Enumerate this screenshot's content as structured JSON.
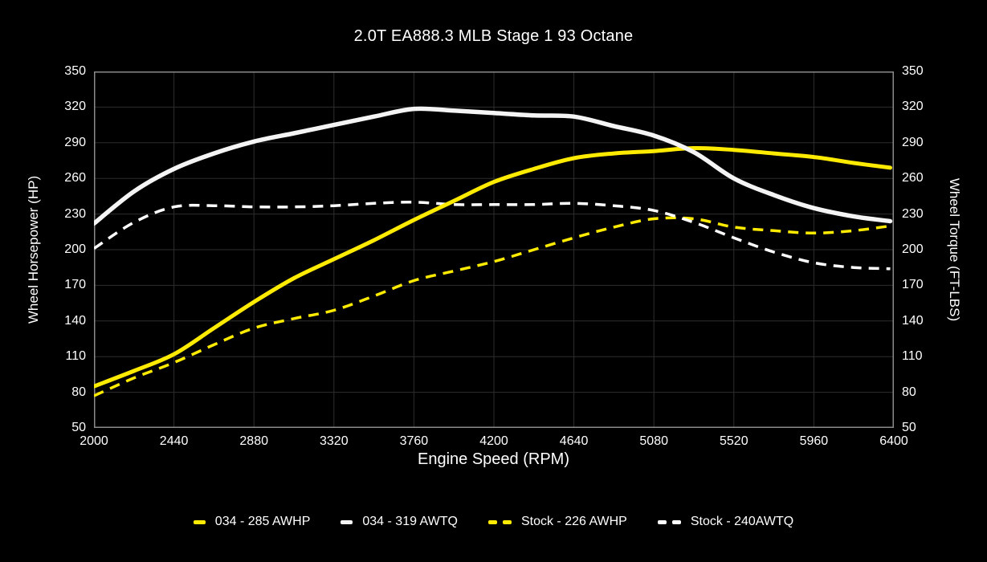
{
  "colors": {
    "background": "#000000",
    "text": "#ffffff",
    "grid": "#2e2e2e",
    "plot_border": "#8a8a8a",
    "accent_yellow": "#ffeb00",
    "accent_white": "#f4f4f4"
  },
  "chart_data": {
    "type": "line",
    "title": "2.0T EA888.3 MLB Stage 1 93 Octane",
    "xlabel": "Engine Speed (RPM)",
    "ylabel_left": "Wheel Horsepower (HP)",
    "ylabel_right": "Wheel Torque (FT-LBS)",
    "xlim": [
      2000,
      6400
    ],
    "ylim": [
      50,
      350
    ],
    "xticks": [
      2000,
      2440,
      2880,
      3320,
      3760,
      4200,
      4640,
      5080,
      5520,
      5960,
      6400
    ],
    "yticks": [
      350,
      320,
      290,
      260,
      230,
      200,
      170,
      140,
      110,
      80,
      50
    ],
    "grid": true,
    "legend_position": "bottom",
    "x": [
      2000,
      2220,
      2440,
      2660,
      2880,
      3100,
      3320,
      3540,
      3760,
      3980,
      4200,
      4420,
      4640,
      4860,
      5080,
      5300,
      5520,
      5740,
      5960,
      6180,
      6380
    ],
    "series": [
      {
        "name": "034 - 285 AWHP",
        "color": "#ffeb00",
        "style": "solid",
        "width": 5,
        "values": [
          85,
          98,
          112,
          134,
          156,
          176,
          192,
          208,
          225,
          241,
          257,
          268,
          277,
          281,
          283,
          285.5,
          284,
          281,
          278,
          273,
          269
        ]
      },
      {
        "name": "034 - 319 AWTQ",
        "color": "#f4f4f4",
        "style": "solid",
        "width": 5.5,
        "values": [
          222,
          249,
          268,
          281,
          291,
          298,
          305,
          312,
          318.5,
          317,
          315,
          313,
          312,
          304,
          296,
          282,
          260,
          246,
          235,
          228,
          224
        ]
      },
      {
        "name": "Stock - 226 AWHP",
        "color": "#ffeb00",
        "style": "dashed",
        "width": 3.5,
        "values": [
          77,
          92,
          105,
          120,
          134,
          142,
          149,
          161,
          174,
          182,
          190,
          200,
          210,
          219,
          226,
          226,
          219,
          216,
          214,
          216,
          220
        ]
      },
      {
        "name": "Stock - 240AWTQ",
        "color": "#ffffff",
        "style": "dashed",
        "width": 3.5,
        "values": [
          201,
          223,
          236,
          237,
          236,
          236,
          237,
          239,
          240,
          238,
          238,
          238,
          239,
          237,
          233,
          223,
          210,
          198,
          189,
          185,
          184
        ]
      }
    ]
  }
}
